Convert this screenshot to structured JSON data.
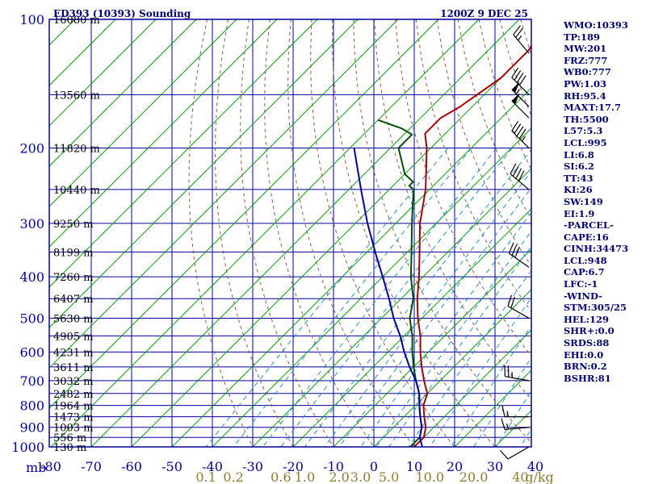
{
  "title_left": "ED393 (10393) Sounding",
  "title_right": "1200Z  9 DEC 25",
  "indices": [
    "WMO:10393",
    "TP:189",
    "MW:201",
    "FRZ:777",
    "WB0:777",
    "PW:1.03",
    "RH:95.4",
    "MAXT:17.7",
    "TH:5500",
    "L57:5.3",
    "LCL:995",
    "LI:6.8",
    "SI:6.2",
    "TT:43",
    "KI:26",
    "SW:149",
    "EI:1.9",
    "-PARCEL-",
    "CAPE:16",
    "CINH:34473",
    "LCL:948",
    "CAP:6.7",
    "LFC:-1",
    "-WIND-",
    "STM:305/25",
    "HEL:129",
    "SHR+:0.0",
    "SRDS:88",
    "EHI:0.0",
    "BRN:0.2",
    "BSHR:81"
  ],
  "colors": {
    "frame": "#0000a0",
    "grid": "#0000a0",
    "isotherm": "#00a000",
    "dry_adiabat": "#806040",
    "mixing_ratio": "#2090d0",
    "temperature": "#b00000",
    "dewpoint": "#005000",
    "parcel": "#0000b0",
    "mixing_label": "#8b7d2a"
  },
  "chart_data": {
    "type": "line",
    "yscale": "log-pressure",
    "ylabel": "mb",
    "pressure_ticks": [
      100,
      200,
      300,
      400,
      500,
      600,
      700,
      800,
      900,
      1000
    ],
    "pressure_tick_labels": [
      "100",
      "200",
      "300",
      "400",
      "500",
      "600",
      "700",
      "800",
      "900",
      "1000"
    ],
    "temperature_ticks": [
      -80,
      -70,
      -60,
      -50,
      -40,
      -30,
      -20,
      -10,
      0,
      10,
      20,
      30,
      40
    ],
    "temperature_tick_labels": [
      "-80",
      "-70",
      "-60",
      "-50",
      "-40",
      "-30",
      "-20",
      "-10",
      "0",
      "10",
      "20",
      "30",
      "40"
    ],
    "xlim": [
      -80,
      40
    ],
    "ylim": [
      1000,
      100
    ],
    "height_labels": [
      {
        "p": 100,
        "text": "16080 m"
      },
      {
        "p": 150,
        "text": "13560 m"
      },
      {
        "p": 200,
        "text": "11820 m"
      },
      {
        "p": 250,
        "text": "10440 m"
      },
      {
        "p": 300,
        "text": "9250 m"
      },
      {
        "p": 350,
        "text": "8199 m"
      },
      {
        "p": 400,
        "text": "7260 m"
      },
      {
        "p": 450,
        "text": "6407 m"
      },
      {
        "p": 500,
        "text": "5630 m"
      },
      {
        "p": 550,
        "text": "4905 m"
      },
      {
        "p": 600,
        "text": "4231 m"
      },
      {
        "p": 650,
        "text": "3611 m"
      },
      {
        "p": 700,
        "text": "3032 m"
      },
      {
        "p": 750,
        "text": "2482 m"
      },
      {
        "p": 800,
        "text": "1964 m"
      },
      {
        "p": 850,
        "text": "1473 m"
      },
      {
        "p": 900,
        "text": "1003 m"
      },
      {
        "p": 950,
        "text": "556 m"
      },
      {
        "p": 1000,
        "text": "130 m"
      }
    ],
    "mixing_ratio_labels": [
      {
        "w": 0.1,
        "text": "0.1"
      },
      {
        "w": 0.2,
        "text": "0.2"
      },
      {
        "w": 0.6,
        "text": "0.6"
      },
      {
        "w": 1.0,
        "text": "1.0"
      },
      {
        "w": 2.0,
        "text": "2.0"
      },
      {
        "w": 3.0,
        "text": "3.0"
      },
      {
        "w": 5.0,
        "text": "5.0"
      },
      {
        "w": 10.0,
        "text": "10.0"
      },
      {
        "w": 20.0,
        "text": "20.0"
      },
      {
        "w": 40.0,
        "text": "40"
      }
    ],
    "mixing_ratio_unit": "g/kg",
    "series": [
      {
        "key": "temperature",
        "points": [
          [
            100,
            -63
          ],
          [
            118,
            -60
          ],
          [
            137,
            -60
          ],
          [
            160,
            -63
          ],
          [
            170,
            -65
          ],
          [
            185,
            -65
          ],
          [
            200,
            -61
          ],
          [
            250,
            -51
          ],
          [
            300,
            -44
          ],
          [
            350,
            -37
          ],
          [
            400,
            -31
          ],
          [
            450,
            -26
          ],
          [
            500,
            -21
          ],
          [
            550,
            -16
          ],
          [
            600,
            -12
          ],
          [
            650,
            -8
          ],
          [
            700,
            -4
          ],
          [
            750,
            0
          ],
          [
            800,
            2
          ],
          [
            850,
            5
          ],
          [
            900,
            8
          ],
          [
            950,
            10
          ],
          [
            1000,
            10
          ]
        ]
      },
      {
        "key": "dewpoint",
        "points": [
          [
            172,
            -80
          ],
          [
            180,
            -72
          ],
          [
            186,
            -68
          ],
          [
            200,
            -68
          ],
          [
            230,
            -60
          ],
          [
            240,
            -56
          ],
          [
            245,
            -56
          ],
          [
            250,
            -54
          ],
          [
            300,
            -46
          ],
          [
            350,
            -39
          ],
          [
            400,
            -33
          ],
          [
            450,
            -27
          ],
          [
            500,
            -23
          ],
          [
            550,
            -18
          ],
          [
            600,
            -14
          ],
          [
            650,
            -10
          ],
          [
            700,
            -6
          ],
          [
            750,
            -2
          ],
          [
            800,
            1
          ],
          [
            850,
            4
          ],
          [
            900,
            7
          ],
          [
            950,
            9
          ],
          [
            1000,
            9
          ]
        ]
      },
      {
        "key": "parcel",
        "points": [
          [
            200,
            -79
          ],
          [
            250,
            -67
          ],
          [
            300,
            -57
          ],
          [
            350,
            -48
          ],
          [
            400,
            -40
          ],
          [
            450,
            -33
          ],
          [
            500,
            -27
          ],
          [
            550,
            -21
          ],
          [
            600,
            -16
          ],
          [
            650,
            -11
          ],
          [
            700,
            -6
          ],
          [
            750,
            -2
          ],
          [
            800,
            1
          ],
          [
            850,
            4
          ],
          [
            900,
            7
          ],
          [
            950,
            9
          ],
          [
            1000,
            12
          ]
        ]
      }
    ],
    "wind_barbs": [
      {
        "p": 120,
        "dir": 320,
        "speed": 25
      },
      {
        "p": 150,
        "dir": 315,
        "speed": 40
      },
      {
        "p": 160,
        "dir": 315,
        "speed": 55
      },
      {
        "p": 170,
        "dir": 315,
        "speed": 50
      },
      {
        "p": 200,
        "dir": 315,
        "speed": 45
      },
      {
        "p": 250,
        "dir": 310,
        "speed": 40
      },
      {
        "p": 380,
        "dir": 305,
        "speed": 30
      },
      {
        "p": 500,
        "dir": 300,
        "speed": 20
      },
      {
        "p": 700,
        "dir": 280,
        "speed": 25
      },
      {
        "p": 850,
        "dir": 270,
        "speed": 15
      },
      {
        "p": 900,
        "dir": 265,
        "speed": 15
      },
      {
        "p": 1000,
        "dir": 240,
        "speed": 10
      }
    ]
  }
}
